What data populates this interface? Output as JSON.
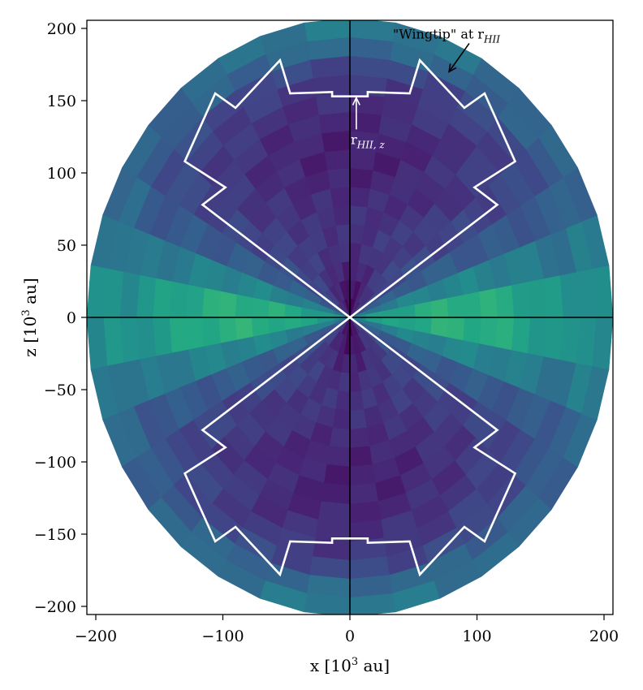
{
  "chart_data": {
    "type": "heatmap",
    "title": "",
    "xlabel": "x [10",
    "xlabel_sup": "3",
    "xlabel_unit": " au]",
    "ylabel": "z [10",
    "ylabel_sup": "3",
    "ylabel_unit": " au]",
    "xlim": [
      -207,
      207
    ],
    "ylim": [
      -207,
      207
    ],
    "x_ticks": [
      -200,
      -100,
      0,
      100,
      200
    ],
    "x_tick_labels": [
      "−200",
      "−100",
      "0",
      "100",
      "200"
    ],
    "y_ticks": [
      200,
      150,
      100,
      50,
      0,
      -50,
      -100,
      -150,
      -200
    ],
    "y_tick_labels": [
      "200",
      "150",
      "100",
      "50",
      "0",
      "−50",
      "−100",
      "−150",
      "−200"
    ],
    "grid": false,
    "colormap": "viridis",
    "domain": {
      "shape": "disk",
      "radius": 207
    },
    "axis_lines": [
      {
        "orientation": "horizontal",
        "value": 0
      },
      {
        "orientation": "vertical",
        "value": 0
      }
    ],
    "ionization_front_boundary": {
      "color": "#ffffff",
      "points": [
        [
          0,
          0
        ],
        [
          -116,
          78
        ],
        [
          -98,
          90
        ],
        [
          -130,
          108
        ],
        [
          -106,
          155
        ],
        [
          -90,
          145
        ],
        [
          -55,
          178
        ],
        [
          -47,
          155
        ],
        [
          -14,
          156
        ],
        [
          -14,
          153
        ],
        [
          0,
          153
        ],
        [
          14,
          153
        ],
        [
          14,
          156
        ],
        [
          47,
          155
        ],
        [
          55,
          178
        ],
        [
          90,
          145
        ],
        [
          106,
          155
        ],
        [
          130,
          108
        ],
        [
          98,
          90
        ],
        [
          116,
          78
        ],
        [
          0,
          0
        ]
      ]
    },
    "annotations": [
      {
        "text_main": "\"Wingtip\" at r",
        "text_sub": "HII",
        "color": "#000000",
        "text_at": [
          76,
          193
        ],
        "arrow_to": [
          78,
          170
        ]
      },
      {
        "text_main": "r",
        "text_sub": "HII, z",
        "color": "#ffffff",
        "text_at": [
          14,
          120
        ],
        "arrow_to": [
          5,
          152
        ]
      }
    ]
  },
  "colors": {
    "frame": "#000000",
    "boundary": "#ffffff",
    "background": "#ffffff"
  }
}
